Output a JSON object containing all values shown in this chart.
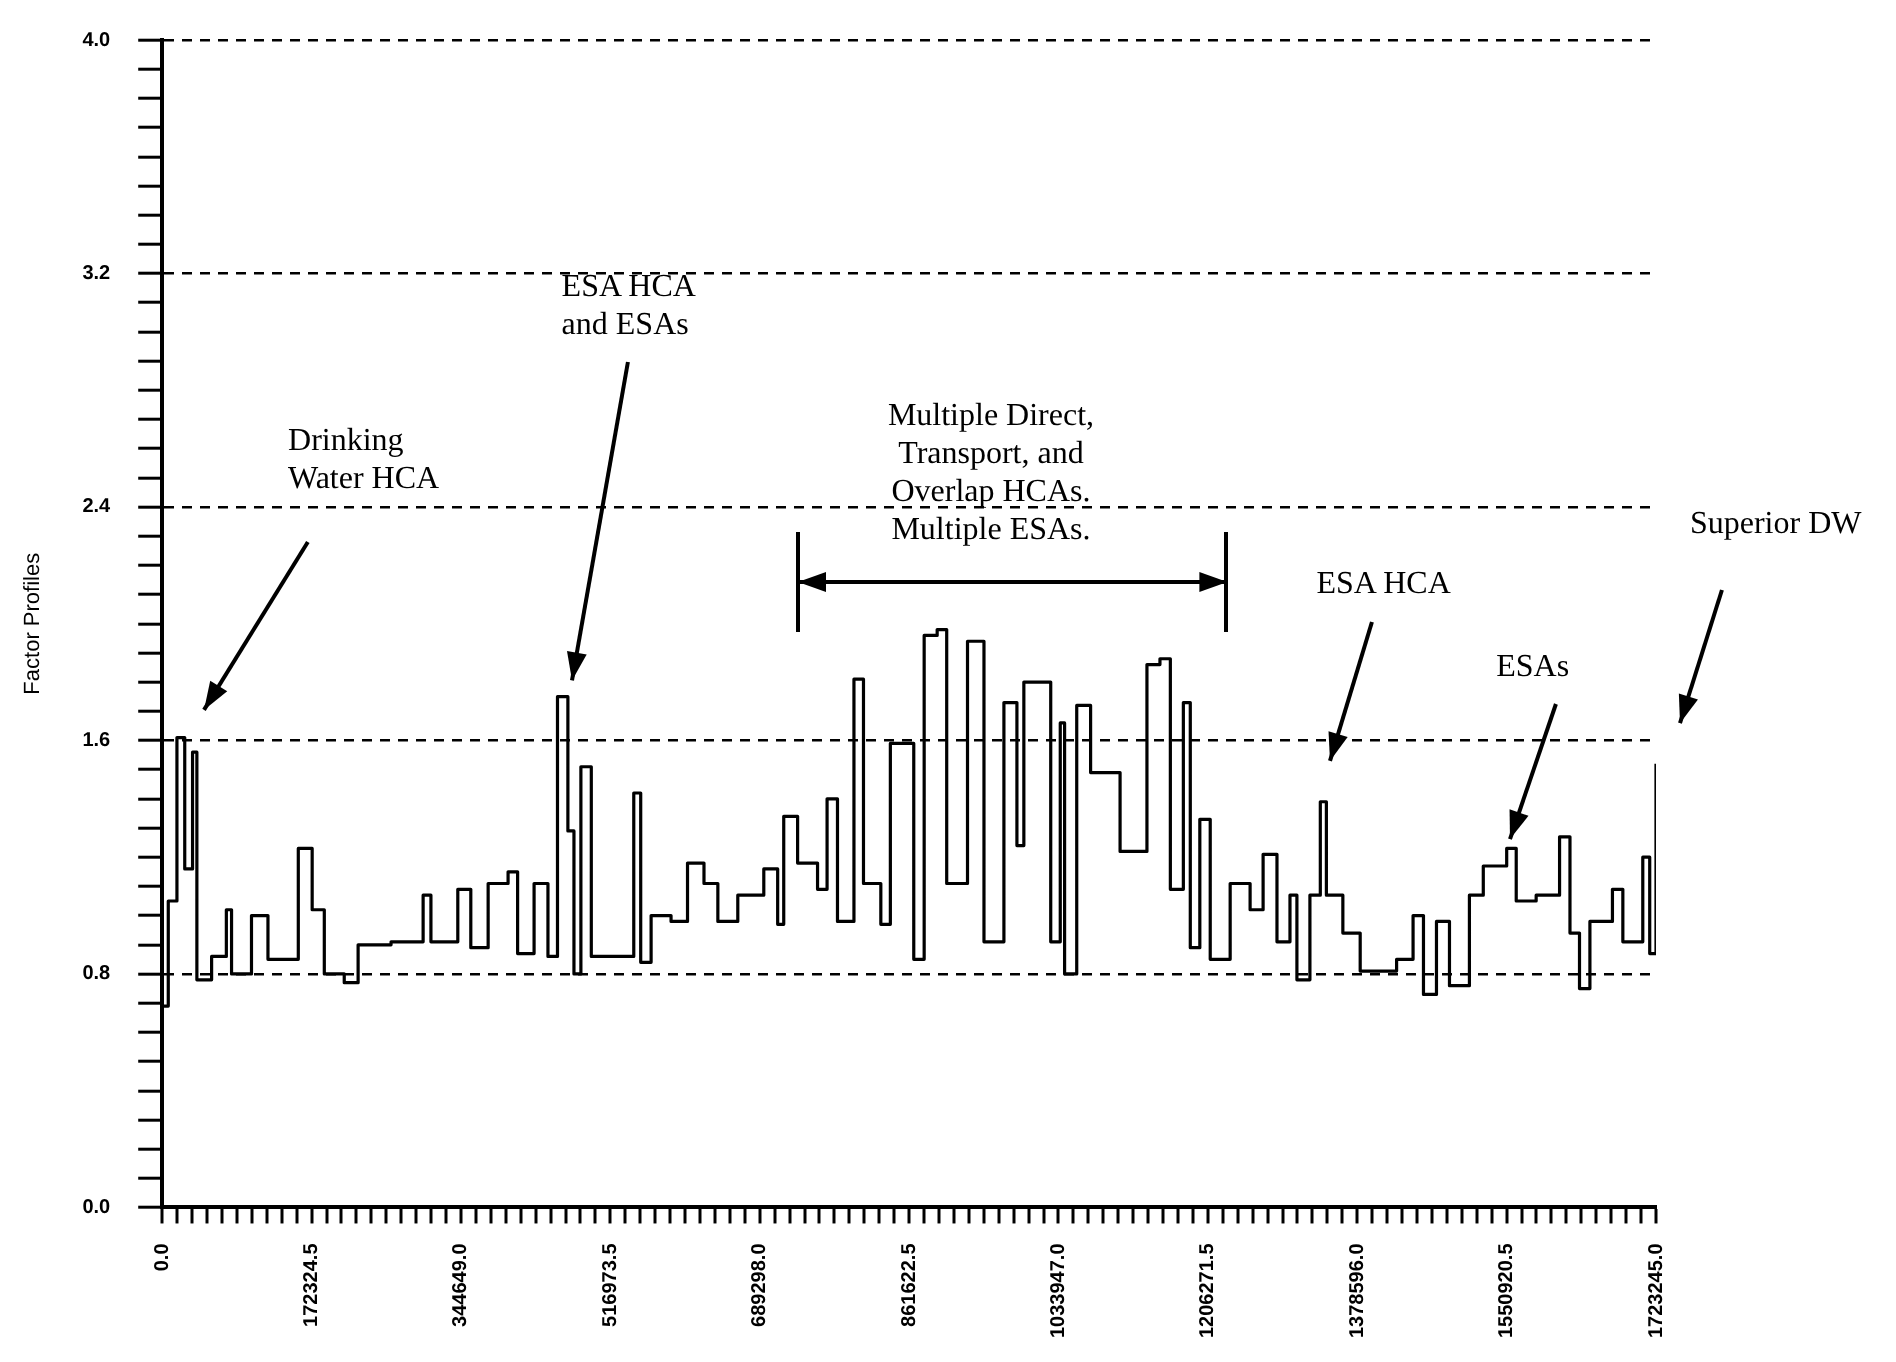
{
  "chart_data": {
    "type": "step",
    "ylabel": "Factor Profiles",
    "x": [
      0,
      7000,
      17000,
      26000,
      35000,
      40000,
      57000,
      74000,
      80000,
      103000,
      122000,
      157000,
      173000,
      187000,
      210000,
      226000,
      264000,
      301000,
      310000,
      341000,
      356000,
      376000,
      399000,
      410000,
      429000,
      445000,
      456000,
      468000,
      475000,
      483000,
      495000,
      525000,
      544000,
      552000,
      564000,
      587000,
      606000,
      625000,
      641000,
      664000,
      694000,
      710000,
      717000,
      733000,
      756000,
      767000,
      779000,
      798000,
      809000,
      829000,
      840000,
      867000,
      879000,
      894000,
      905000,
      929000,
      948000,
      971000,
      986000,
      994000,
      1025000,
      1036000,
      1041000,
      1055000,
      1071000,
      1094000,
      1105000,
      1124000,
      1136000,
      1151000,
      1163000,
      1178000,
      1186000,
      1197000,
      1209000,
      1232000,
      1255000,
      1270000,
      1286000,
      1301000,
      1309000,
      1324000,
      1336000,
      1343000,
      1362000,
      1382000,
      1424000,
      1443000,
      1455000,
      1470000,
      1485000,
      1508000,
      1524000,
      1551000,
      1562000,
      1585000,
      1612000,
      1624000,
      1635000,
      1647000,
      1673000,
      1685000,
      1708000,
      1716000,
      1723245
    ],
    "series": [
      {
        "color": "#000000",
        "values": [
          0.69,
          1.05,
          1.61,
          1.16,
          1.56,
          0.78,
          0.86,
          1.02,
          0.8,
          1.0,
          0.85,
          1.23,
          1.02,
          0.8,
          0.77,
          0.9,
          0.91,
          1.07,
          0.91,
          1.09,
          0.89,
          1.11,
          1.15,
          0.87,
          1.11,
          0.86,
          1.75,
          1.29,
          0.8,
          1.51,
          0.86,
          0.86,
          1.42,
          0.84,
          1.0,
          0.98,
          1.18,
          1.11,
          0.98,
          1.07,
          1.16,
          0.97,
          1.34,
          1.18,
          1.09,
          1.4,
          0.98,
          1.81,
          1.11,
          0.97,
          1.59,
          0.85,
          1.96,
          1.98,
          1.11,
          1.94,
          0.91,
          1.73,
          1.24,
          1.8,
          0.91,
          1.66,
          0.8,
          1.72,
          1.49,
          1.49,
          1.22,
          1.22,
          1.86,
          1.88,
          1.09,
          1.73,
          0.89,
          1.33,
          0.85,
          1.11,
          1.02,
          1.21,
          0.91,
          1.07,
          0.78,
          1.07,
          1.39,
          1.07,
          0.94,
          0.81,
          0.85,
          1.0,
          0.73,
          0.98,
          0.76,
          1.07,
          1.17,
          1.23,
          1.05,
          1.07,
          1.27,
          0.94,
          0.75,
          0.98,
          1.09,
          0.91,
          1.2,
          0.87,
          1.52
        ]
      }
    ],
    "xlim": [
      0,
      1723245
    ],
    "xticks": [
      {
        "value": 0,
        "label": "0.0"
      },
      {
        "value": 17232.45,
        "label": null
      },
      {
        "value": 34464.9,
        "label": null
      },
      {
        "value": 51697.35,
        "label": null
      },
      {
        "value": 68929.8,
        "label": null
      },
      {
        "value": 86162.25,
        "label": null
      },
      {
        "value": 103394.7,
        "label": null
      },
      {
        "value": 120627.15,
        "label": null
      },
      {
        "value": 137859.6,
        "label": null
      },
      {
        "value": 155092.05,
        "label": null
      },
      172324.5,
      {
        "value": 189556.95,
        "label": null
      },
      {
        "value": 206789.4,
        "label": null
      },
      {
        "value": 224021.85,
        "label": null
      },
      {
        "value": 241254.3,
        "label": null
      },
      {
        "value": 258486.75,
        "label": null
      },
      {
        "value": 275719.2,
        "label": null
      },
      {
        "value": 292951.65,
        "label": null
      },
      {
        "value": 310184.1,
        "label": null
      },
      {
        "value": 327416.55,
        "label": null
      },
      {
        "value": 344649,
        "label": "344649.0"
      },
      {
        "value": 361881.45,
        "label": null
      },
      {
        "value": 379113.9,
        "label": null
      },
      {
        "value": 396346.35,
        "label": null
      },
      {
        "value": 413578.8,
        "label": null
      },
      {
        "value": 430811.25,
        "label": null
      },
      {
        "value": 448043.7,
        "label": null
      },
      {
        "value": 465276.15,
        "label": null
      },
      {
        "value": 482508.6,
        "label": null
      },
      {
        "value": 499741.05,
        "label": null
      },
      516973.5,
      {
        "value": 534205.95,
        "label": null
      },
      {
        "value": 551438.4,
        "label": null
      },
      {
        "value": 568670.85,
        "label": null
      },
      {
        "value": 585903.3,
        "label": null
      },
      {
        "value": 603135.75,
        "label": null
      },
      {
        "value": 620368.2,
        "label": null
      },
      {
        "value": 637600.65,
        "label": null
      },
      {
        "value": 654833.1,
        "label": null
      },
      {
        "value": 672065.55,
        "label": null
      },
      {
        "value": 689298,
        "label": "689298.0"
      },
      {
        "value": 706530.45,
        "label": null
      },
      {
        "value": 723762.9,
        "label": null
      },
      {
        "value": 740995.35,
        "label": null
      },
      {
        "value": 758227.8,
        "label": null
      },
      {
        "value": 775460.25,
        "label": null
      },
      {
        "value": 792692.7,
        "label": null
      },
      {
        "value": 809925.15,
        "label": null
      },
      {
        "value": 827157.6,
        "label": null
      },
      {
        "value": 844390.05,
        "label": null
      },
      861622.5,
      {
        "value": 878854.95,
        "label": null
      },
      {
        "value": 896087.4,
        "label": null
      },
      {
        "value": 913319.85,
        "label": null
      },
      {
        "value": 930552.3,
        "label": null
      },
      {
        "value": 947784.75,
        "label": null
      },
      {
        "value": 965017.2,
        "label": null
      },
      {
        "value": 982249.65,
        "label": null
      },
      {
        "value": 999482.1,
        "label": null
      },
      {
        "value": 1016714.55,
        "label": null
      },
      {
        "value": 1033947,
        "label": "1033947.0"
      },
      {
        "value": 1051179.45,
        "label": null
      },
      {
        "value": 1068411.9,
        "label": null
      },
      {
        "value": 1085644.35,
        "label": null
      },
      {
        "value": 1102876.8,
        "label": null
      },
      {
        "value": 1120109.25,
        "label": null
      },
      {
        "value": 1137341.7,
        "label": null
      },
      {
        "value": 1154574.15,
        "label": null
      },
      {
        "value": 1171806.6,
        "label": null
      },
      {
        "value": 1189039.05,
        "label": null
      },
      1206271.5,
      {
        "value": 1223503.95,
        "label": null
      },
      {
        "value": 1240736.4,
        "label": null
      },
      {
        "value": 1257968.85,
        "label": null
      },
      {
        "value": 1275201.3,
        "label": null
      },
      {
        "value": 1292433.75,
        "label": null
      },
      {
        "value": 1309666.2,
        "label": null
      },
      {
        "value": 1326898.65,
        "label": null
      },
      {
        "value": 1344131.1,
        "label": null
      },
      {
        "value": 1361363.55,
        "label": null
      },
      {
        "value": 1378596,
        "label": "1378596.0"
      },
      {
        "value": 1395828.45,
        "label": null
      },
      {
        "value": 1413060.9,
        "label": null
      },
      {
        "value": 1430293.35,
        "label": null
      },
      {
        "value": 1447525.8,
        "label": null
      },
      {
        "value": 1464758.25,
        "label": null
      },
      {
        "value": 1481990.7,
        "label": null
      },
      {
        "value": 1499223.15,
        "label": null
      },
      {
        "value": 1516455.6,
        "label": null
      },
      {
        "value": 1533688.05,
        "label": null
      },
      1550920.5,
      {
        "value": 1568152.95,
        "label": null
      },
      {
        "value": 1585385.4,
        "label": null
      },
      {
        "value": 1602617.85,
        "label": null
      },
      {
        "value": 1619850.3,
        "label": null
      },
      {
        "value": 1637082.75,
        "label": null
      },
      {
        "value": 1654315.2,
        "label": null
      },
      {
        "value": 1671547.65,
        "label": null
      },
      {
        "value": 1688780.1,
        "label": null
      },
      {
        "value": 1706012.55,
        "label": null
      },
      {
        "value": 1723245,
        "label": "1723245.0"
      }
    ],
    "ylim": [
      0,
      4
    ],
    "yticks": [
      {
        "value": 0,
        "label": "0.0"
      },
      {
        "value": 0.1,
        "label": null
      },
      {
        "value": 0.2,
        "label": null
      },
      {
        "value": 0.3,
        "label": null
      },
      {
        "value": 0.4,
        "label": null
      },
      {
        "value": 0.5,
        "label": null
      },
      {
        "value": 0.6,
        "label": null
      },
      {
        "value": 0.7,
        "label": null
      },
      0.8,
      {
        "value": 0.9,
        "label": null
      },
      {
        "value": 1.0,
        "label": null
      },
      {
        "value": 1.1,
        "label": null
      },
      {
        "value": 1.2,
        "label": null
      },
      {
        "value": 1.3,
        "label": null
      },
      {
        "value": 1.4,
        "label": null
      },
      {
        "value": 1.5,
        "label": null
      },
      1.6,
      {
        "value": 1.7,
        "label": null
      },
      {
        "value": 1.8,
        "label": null
      },
      {
        "value": 1.9,
        "label": null
      },
      {
        "value": 2.0,
        "label": null
      },
      {
        "value": 2.1,
        "label": null
      },
      {
        "value": 2.2,
        "label": null
      },
      {
        "value": 2.3,
        "label": null
      },
      2.4,
      {
        "value": 2.5,
        "label": null
      },
      {
        "value": 2.6,
        "label": null
      },
      {
        "value": 2.7,
        "label": null
      },
      {
        "value": 2.8,
        "label": null
      },
      {
        "value": 2.9,
        "label": null
      },
      {
        "value": 3.0,
        "label": null
      },
      {
        "value": 3.1,
        "label": null
      },
      3.2,
      {
        "value": 3.3,
        "label": null
      },
      {
        "value": 3.4,
        "label": null
      },
      {
        "value": 3.5,
        "label": null
      },
      {
        "value": 3.6,
        "label": null
      },
      {
        "value": 3.7,
        "label": null
      },
      {
        "value": 3.8,
        "label": null
      },
      {
        "value": 3.9,
        "label": null
      },
      {
        "value": 4.0,
        "label": "4.0"
      }
    ],
    "grid": "y",
    "line_style": "solid",
    "annotations": [
      "Drinking\nWater HCA",
      "ESA HCA\nand ESAs",
      "Multiple Direct,\nTransport, and\nOverlap HCAs.\nMultiple ESAs.",
      "ESA HCA",
      "ESAs",
      "Superior DW"
    ]
  }
}
